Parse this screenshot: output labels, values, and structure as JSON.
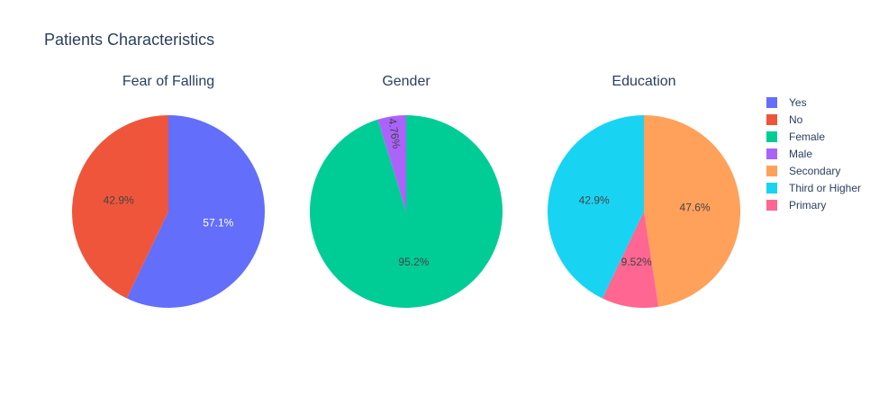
{
  "chart_data": {
    "type": "pie",
    "title": "Patients Characteristics",
    "legend_placement": "right",
    "pies": [
      {
        "title": "Fear of Falling",
        "slices": [
          {
            "name": "Yes",
            "value": 57.1,
            "label": "57.1%",
            "color": "#636efa"
          },
          {
            "name": "No",
            "value": 42.9,
            "label": "42.9%",
            "color": "#ef553b"
          }
        ]
      },
      {
        "title": "Gender",
        "slices": [
          {
            "name": "Female",
            "value": 95.2,
            "label": "95.2%",
            "color": "#00cc96"
          },
          {
            "name": "Male",
            "value": 4.76,
            "label": "4.76%",
            "color": "#ab63fa"
          }
        ]
      },
      {
        "title": "Education",
        "slices": [
          {
            "name": "Secondary",
            "value": 47.6,
            "label": "47.6%",
            "color": "#ffa15a"
          },
          {
            "name": "Primary",
            "value": 9.52,
            "label": "9.52%",
            "color": "#ff6692"
          },
          {
            "name": "Third or Higher",
            "value": 42.9,
            "label": "42.9%",
            "color": "#19d3f3"
          }
        ]
      }
    ],
    "legend": [
      {
        "name": "Yes",
        "color": "#636efa"
      },
      {
        "name": "No",
        "color": "#ef553b"
      },
      {
        "name": "Female",
        "color": "#00cc96"
      },
      {
        "name": "Male",
        "color": "#ab63fa"
      },
      {
        "name": "Secondary",
        "color": "#ffa15a"
      },
      {
        "name": "Third or Higher",
        "color": "#19d3f3"
      },
      {
        "name": "Primary",
        "color": "#ff6692"
      }
    ]
  }
}
